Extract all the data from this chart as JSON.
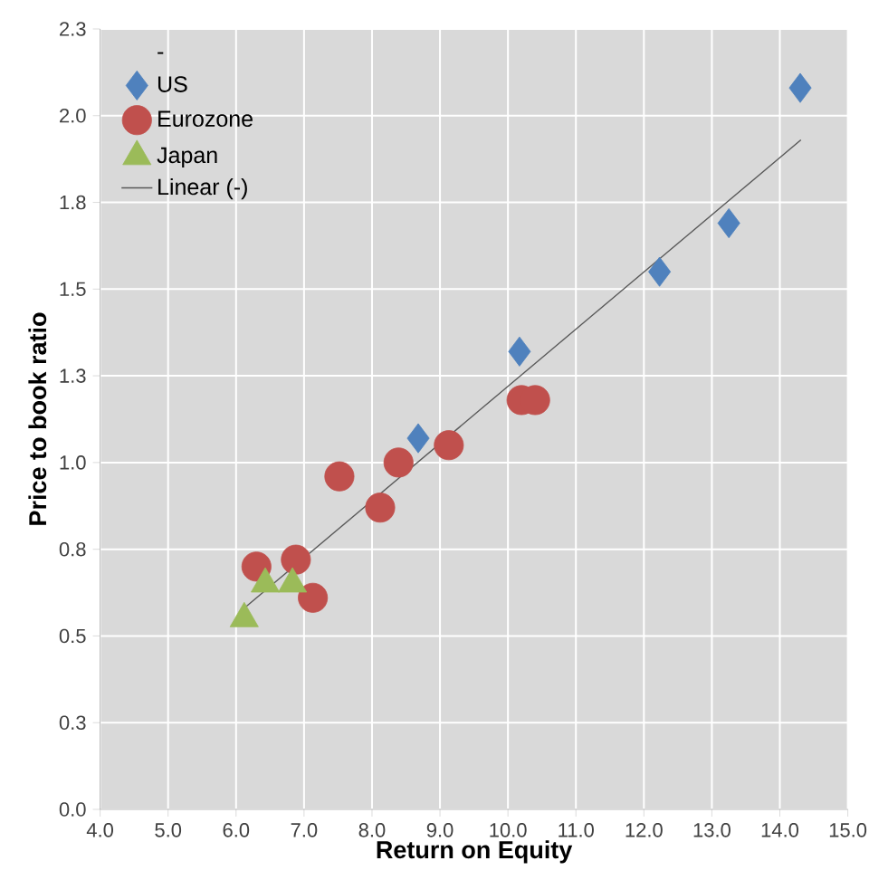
{
  "chart_data": {
    "type": "scatter",
    "xlabel": "Return on Equity",
    "ylabel": "Price to book  ratio",
    "legend_title": "-",
    "xlim": [
      4,
      15
    ],
    "ylim": [
      0,
      2.25
    ],
    "xticks": [
      {
        "value": 4,
        "label": "4.0"
      },
      {
        "value": 5,
        "label": "5.0"
      },
      {
        "value": 6,
        "label": "6.0"
      },
      {
        "value": 7,
        "label": "7.0"
      },
      {
        "value": 8,
        "label": "8.0"
      },
      {
        "value": 9,
        "label": "9.0"
      },
      {
        "value": 10,
        "label": "10.0"
      },
      {
        "value": 11,
        "label": "11.0"
      },
      {
        "value": 12,
        "label": "12.0"
      },
      {
        "value": 13,
        "label": "13.0"
      },
      {
        "value": 14,
        "label": "14.0"
      },
      {
        "value": 15,
        "label": "15.0"
      }
    ],
    "yticks": [
      {
        "value": 0,
        "label": "0.0"
      },
      {
        "value": 0.25,
        "label": "0.3"
      },
      {
        "value": 0.5,
        "label": "0.5"
      },
      {
        "value": 0.75,
        "label": "0.8"
      },
      {
        "value": 1,
        "label": "1.0"
      },
      {
        "value": 1.25,
        "label": "1.3"
      },
      {
        "value": 1.5,
        "label": "1.5"
      },
      {
        "value": 1.75,
        "label": "1.8"
      },
      {
        "value": 2,
        "label": "2.0"
      },
      {
        "value": 2.25,
        "label": "2.3"
      }
    ],
    "grid": true,
    "legend": "top left",
    "series": [
      {
        "name": "US",
        "color": "#4f81bd",
        "marker": "diamond",
        "x": [
          14.3,
          13.25,
          12.23,
          10.17,
          8.68
        ],
        "values": [
          2.08,
          1.69,
          1.55,
          1.32,
          1.07
        ]
      },
      {
        "name": "Eurozone",
        "color": "#c0504d",
        "marker": "circle",
        "x": [
          10.2,
          10.4,
          9.13,
          8.39,
          7.52,
          8.12,
          6.3,
          6.88,
          7.13
        ],
        "values": [
          1.18,
          1.18,
          1.05,
          1.0,
          0.96,
          0.87,
          0.7,
          0.72,
          0.61
        ]
      },
      {
        "name": "Japan",
        "color": "#9bbb59",
        "marker": "triangle",
        "x": [
          6.12,
          6.43,
          6.83
        ],
        "values": [
          0.55,
          0.65,
          0.65
        ]
      },
      {
        "name": "Linear (-)",
        "type": "line",
        "color": "#595959",
        "marker": "none",
        "x": [
          6.12,
          14.31
        ],
        "values": [
          0.58,
          1.93
        ]
      }
    ]
  }
}
